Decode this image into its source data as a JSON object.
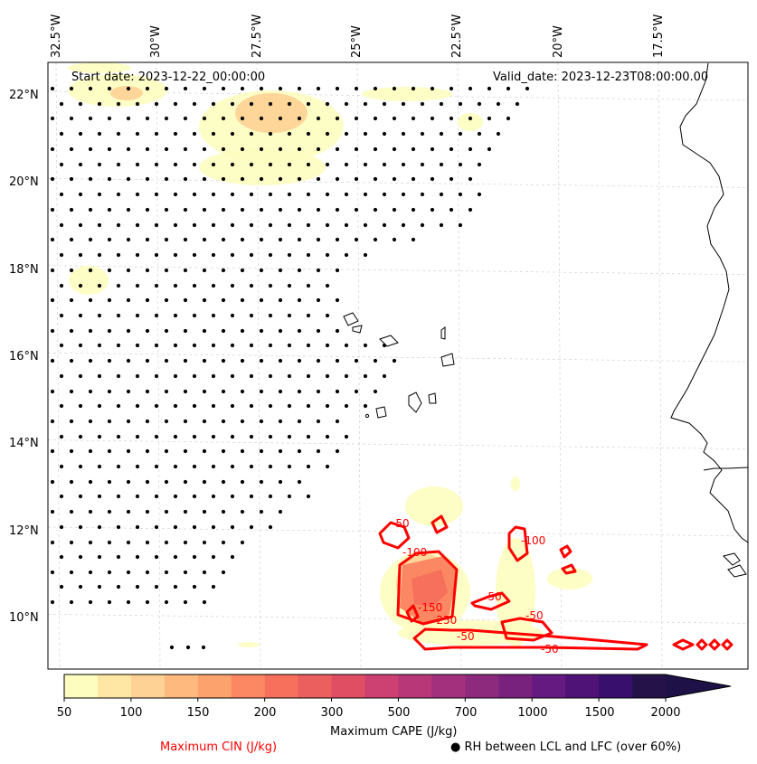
{
  "chart_data": {
    "type": "map-contour",
    "start_date": "Start date: 2023-12-22_00:00:00",
    "valid_date": "Valid_date: 2023-12-23T08:00:00.00",
    "lon_ticks": [
      "32.5°W",
      "30°W",
      "27.5°W",
      "25°W",
      "22.5°W",
      "20°W",
      "17.5°W"
    ],
    "lat_ticks": [
      "22°N",
      "20°N",
      "18°N",
      "16°N",
      "14°N",
      "12°N",
      "10°N"
    ],
    "lon_range": [
      -33.0,
      -15.0
    ],
    "lat_range": [
      8.9,
      22.8
    ],
    "grid": true,
    "cape": {
      "label": "Maximum CAPE (J/kg)",
      "levels": [
        50,
        75,
        100,
        125,
        150,
        175,
        200,
        250,
        300,
        400,
        500,
        600,
        700,
        800,
        1000,
        1250,
        1500,
        1750,
        2000
      ],
      "tick_labels": [
        "50",
        "100",
        "150",
        "200",
        "300",
        "500",
        "700",
        "1000",
        "1500",
        "2000"
      ],
      "colors": [
        "#fdfdc0",
        "#fee7a4",
        "#fed195",
        "#feba7e",
        "#fca26c",
        "#fb8862",
        "#f6705c",
        "#ec5f5f",
        "#e04e64",
        "#cc4171",
        "#b73779",
        "#a3307d",
        "#8e2a7e",
        "#79227d",
        "#641a80",
        "#4f1378",
        "#390f6e",
        "#241249",
        "#1d1147"
      ]
    },
    "cin": {
      "label": "Maximum CIN (J/kg)",
      "color": "#ff0000",
      "contour_labels": [
        "-50",
        "-100",
        "-150",
        "-250",
        "-50",
        "-100",
        "-50",
        "-50",
        "-50"
      ]
    },
    "rh_label": "RH between LCL and LFC (over 60%)"
  }
}
